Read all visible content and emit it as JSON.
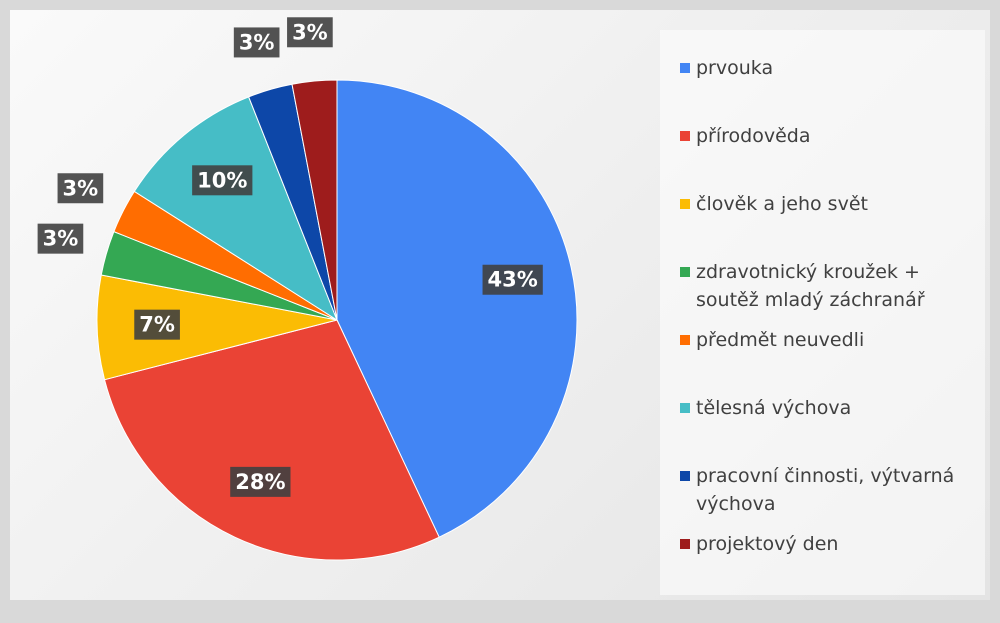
{
  "chart_data": {
    "type": "pie",
    "categories": [
      "prvouka",
      "přírodověda",
      "člověk a jeho svět",
      "zdravotnický kroužek + soutěž mladý záchranář",
      "předmět neuvedli",
      "tělesná výchova",
      "pracovní činnosti, výtvarná výchova",
      "projektový den"
    ],
    "values": [
      43,
      28,
      7,
      3,
      3,
      10,
      3,
      3
    ],
    "value_labels": [
      "43%",
      "28%",
      "7%",
      "3%",
      "3%",
      "10%",
      "3%",
      "3%"
    ],
    "colors": [
      "#4285f4",
      "#ea4335",
      "#fbbc04",
      "#34a853",
      "#ff6d01",
      "#46bdc6",
      "#0d47a8",
      "#9e1c1c"
    ],
    "legend": "right"
  }
}
